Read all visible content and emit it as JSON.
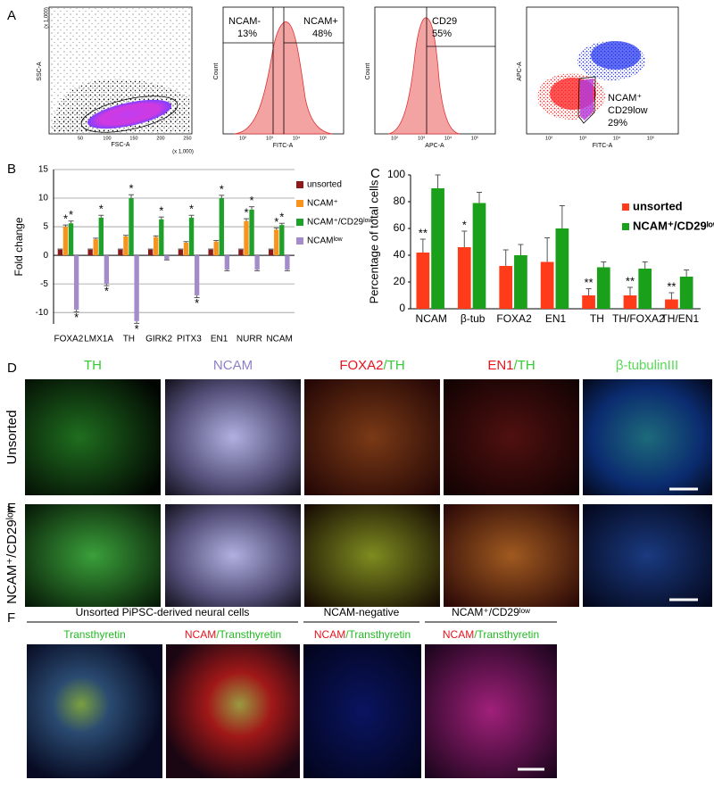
{
  "panel_labels": [
    "A",
    "B",
    "C",
    "D",
    "E",
    "F"
  ],
  "flow": {
    "scatter": {
      "y_label": "SSC-A",
      "x_label": "FSC-A",
      "scale": "(x 1,000)",
      "ticks": [
        "50",
        "100",
        "150",
        "200",
        "250"
      ]
    },
    "log_ticks": [
      "10²",
      "10³",
      "10⁴",
      "10⁵"
    ],
    "ncam_hist": {
      "y_label": "Count",
      "x_label": "FITC-A",
      "gates": [
        [
          "NCAM-",
          "13%"
        ],
        [
          "NCAM+",
          "48%"
        ]
      ]
    },
    "cd29_hist": {
      "y_label": "Count",
      "x_label": "APC-A",
      "gates": [
        [
          "CD29",
          "55%"
        ]
      ]
    },
    "sorted_dot": {
      "y_label": "APC-A",
      "x_label": "FITC-A",
      "gate": [
        "NCAM⁺",
        "CD29low",
        "29%"
      ]
    }
  },
  "chart_data": [
    {
      "type": "bar",
      "y_label": "Fold change",
      "categories": [
        "FOXA2",
        "LMX1A",
        "TH",
        "GIRK2",
        "PITX3",
        "EN1",
        "NURR",
        "NCAM"
      ],
      "ylim": [
        -12,
        15
      ],
      "yticks": [
        -10,
        -5,
        0,
        5,
        10,
        15
      ],
      "grid": true,
      "series": [
        {
          "name": "unsorted",
          "color": "#8b1a1a",
          "values": [
            1,
            1,
            1,
            1,
            1,
            1,
            1,
            1
          ],
          "errors": [
            0.1,
            0.1,
            0.1,
            0.1,
            0.1,
            0.1,
            0.1,
            0.1
          ]
        },
        {
          "name": "NCAM⁺",
          "color": "#f7941d",
          "values": [
            5,
            2.8,
            3.3,
            3.2,
            2.2,
            2.4,
            6,
            4.5
          ],
          "errors": [
            0.3,
            0.2,
            0.2,
            0.2,
            0.2,
            0.2,
            0.4,
            0.3
          ],
          "significance": [
            "*",
            null,
            null,
            null,
            null,
            null,
            "*",
            "*"
          ]
        },
        {
          "name": "NCAM⁺/CD29ˡᵒʷ",
          "color": "#1fa02a",
          "values": [
            5.6,
            6.6,
            10,
            6.3,
            6.6,
            10,
            8,
            5.3
          ],
          "errors": [
            0.4,
            0.4,
            0.6,
            0.4,
            0.4,
            0.5,
            0.5,
            0.3
          ],
          "significance": [
            "*",
            "*",
            "*",
            "*",
            "*",
            "*",
            "*",
            "*"
          ]
        },
        {
          "name": "NCAMˡᵒʷ",
          "color": "#a48ccb",
          "values": [
            -9.5,
            -5,
            -11.5,
            -0.7,
            -7,
            -2.5,
            -2.5,
            -2.5
          ],
          "errors": [
            0.4,
            0.3,
            0.4,
            0.1,
            0.4,
            0.2,
            0.2,
            0.2
          ],
          "significance": [
            "*",
            "*",
            "*",
            null,
            "*",
            null,
            null,
            null
          ]
        }
      ]
    },
    {
      "type": "bar",
      "y_label": "Percentage of total cells",
      "categories": [
        "NCAM",
        "β-tub",
        "FOXA2",
        "EN1",
        "TH",
        "TH/FOXA2",
        "TH/EN1"
      ],
      "ylim": [
        0,
        100
      ],
      "yticks": [
        0,
        20,
        40,
        60,
        80,
        100
      ],
      "grid": false,
      "series": [
        {
          "name": "unsorted",
          "color": "#ff3b1a",
          "values": [
            42,
            46,
            32,
            35,
            10,
            10,
            7
          ],
          "errors": [
            10,
            12,
            12,
            18,
            5,
            6,
            5
          ],
          "significance": [
            "**",
            "*",
            null,
            null,
            "**",
            "**",
            "**"
          ]
        },
        {
          "name": "NCAM⁺/CD29ˡᵒʷ",
          "color": "#1aa01a",
          "values": [
            90,
            79,
            40,
            60,
            31,
            30,
            24
          ],
          "errors": [
            10,
            8,
            8,
            17,
            4,
            5,
            5
          ]
        }
      ]
    }
  ],
  "images": {
    "columns": [
      [
        {
          "text": "TH",
          "color": "#33cc33"
        }
      ],
      [
        {
          "text": "NCAM",
          "color": "#8f7fc8"
        }
      ],
      [
        {
          "text": "FOXA2",
          "color": "#e8141e"
        },
        {
          "text": "/TH",
          "color": "#33cc33"
        }
      ],
      [
        {
          "text": "EN1",
          "color": "#e8141e"
        },
        {
          "text": "/TH",
          "color": "#33cc33"
        }
      ],
      [
        {
          "text": "β-tubulinIII",
          "color": "#55dd55"
        }
      ]
    ],
    "rows": [
      "Unsorted",
      "NCAM⁺/CD29ˡᵒʷ"
    ]
  },
  "panel_f": {
    "groups": [
      "Unsorted PiPSC-derived neural cells",
      "NCAM-negative",
      "NCAM⁺/CD29ˡᵒʷ"
    ],
    "stains": [
      [
        {
          "text": "Transthyretin",
          "color": "#22bb22"
        }
      ],
      [
        {
          "text": "NCAM",
          "color": "#e8141e"
        },
        {
          "text": "/Transthyretin",
          "color": "#22bb22"
        }
      ],
      [
        {
          "text": "NCAM",
          "color": "#e8141e"
        },
        {
          "text": "/Transthyretin",
          "color": "#22bb22"
        }
      ],
      [
        {
          "text": "NCAM",
          "color": "#e8141e"
        },
        {
          "text": "/Transthyretin",
          "color": "#22bb22"
        }
      ]
    ]
  }
}
